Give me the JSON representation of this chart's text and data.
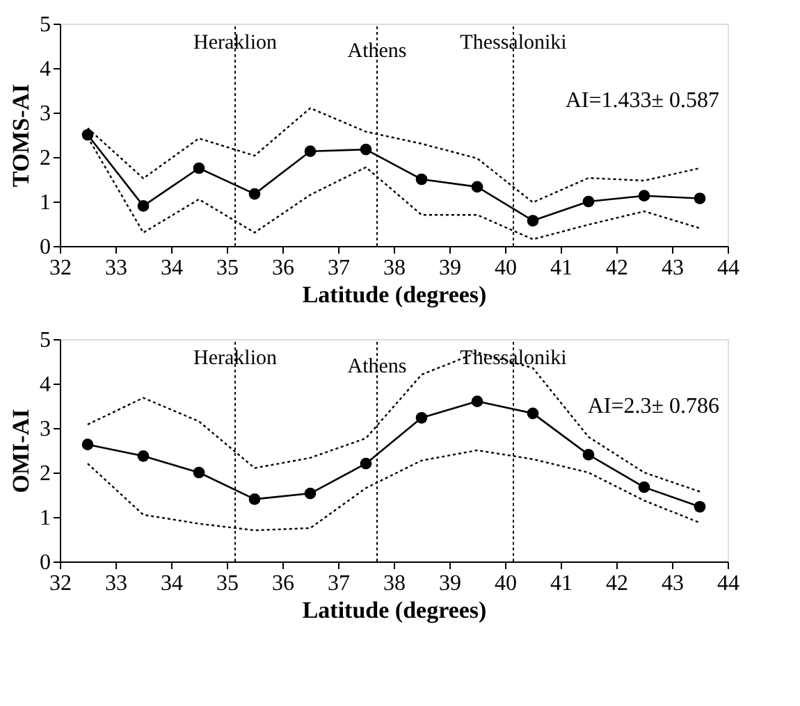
{
  "chart_data": [
    {
      "type": "line",
      "ylabel": "TOMS-AI",
      "xlabel": "Latitude (degrees)",
      "x": [
        32.5,
        33.5,
        34.5,
        35.5,
        36.5,
        37.5,
        38.5,
        39.5,
        40.5,
        41.5,
        42.5,
        43.5
      ],
      "xlim": [
        32,
        44
      ],
      "xticks": [
        32,
        33,
        34,
        35,
        36,
        37,
        38,
        39,
        40,
        41,
        42,
        43,
        44
      ],
      "ylim": [
        0,
        5
      ],
      "yticks": [
        0,
        1,
        2,
        3,
        4,
        5
      ],
      "grid": false,
      "series": [
        {
          "color": "#000000",
          "marker": "circle",
          "line_style": "solid",
          "values": [
            2.5,
            0.9,
            1.75,
            1.17,
            2.13,
            2.17,
            1.5,
            1.33,
            0.57,
            1.0,
            1.13,
            1.07
          ]
        },
        {
          "color": "#000000",
          "marker": "none",
          "line_style": "dotted",
          "values": [
            2.65,
            1.52,
            2.42,
            2.03,
            3.1,
            2.57,
            2.3,
            1.97,
            0.98,
            1.53,
            1.47,
            1.75
          ]
        },
        {
          "color": "#000000",
          "marker": "none",
          "line_style": "dotted",
          "values": [
            2.45,
            0.3,
            1.05,
            0.3,
            1.15,
            1.77,
            0.7,
            0.7,
            0.15,
            0.48,
            0.78,
            0.4
          ]
        }
      ],
      "ref_lines": [
        {
          "axis": "x",
          "value": 35.15,
          "label": "Heraklion",
          "line_style": "dotted"
        },
        {
          "axis": "x",
          "value": 37.7,
          "label": "Athens",
          "line_style": "dotted"
        },
        {
          "axis": "x",
          "value": 40.15,
          "label": "Thessaloniki",
          "line_style": "dotted"
        }
      ],
      "annotations": [
        "AI=1.433± 0.587"
      ]
    },
    {
      "type": "line",
      "ylabel": "OMI-AI",
      "xlabel": "Latitude (degrees)",
      "x": [
        32.5,
        33.5,
        34.5,
        35.5,
        36.5,
        37.5,
        38.5,
        39.5,
        40.5,
        41.5,
        42.5,
        43.5
      ],
      "xlim": [
        32,
        44
      ],
      "xticks": [
        32,
        33,
        34,
        35,
        36,
        37,
        38,
        39,
        40,
        41,
        42,
        43,
        44
      ],
      "ylim": [
        0,
        5
      ],
      "yticks": [
        0,
        1,
        2,
        3,
        4,
        5
      ],
      "grid": false,
      "series": [
        {
          "color": "#000000",
          "marker": "circle",
          "line_style": "solid",
          "values": [
            2.63,
            2.37,
            2.0,
            1.4,
            1.53,
            2.2,
            3.23,
            3.6,
            3.33,
            2.4,
            1.67,
            1.23
          ]
        },
        {
          "color": "#000000",
          "marker": "none",
          "line_style": "dotted",
          "values": [
            3.08,
            3.68,
            3.15,
            2.1,
            2.33,
            2.77,
            4.2,
            4.7,
            4.35,
            2.8,
            2.0,
            1.57
          ]
        },
        {
          "color": "#000000",
          "marker": "none",
          "line_style": "dotted",
          "values": [
            2.2,
            1.05,
            0.85,
            0.7,
            0.75,
            1.65,
            2.27,
            2.5,
            2.3,
            2.0,
            1.37,
            0.87
          ]
        }
      ],
      "ref_lines": [
        {
          "axis": "x",
          "value": 35.15,
          "label": "Heraklion",
          "line_style": "dotted"
        },
        {
          "axis": "x",
          "value": 37.7,
          "label": "Athens",
          "line_style": "dotted"
        },
        {
          "axis": "x",
          "value": 40.15,
          "label": "Thessaloniki",
          "line_style": "dotted"
        }
      ],
      "annotations": [
        "AI=2.3± 0.786"
      ]
    }
  ]
}
